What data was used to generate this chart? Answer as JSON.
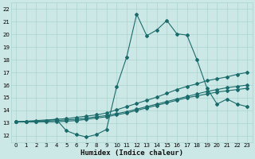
{
  "xlabel": "Humidex (Indice chaleur)",
  "xlim": [
    -0.5,
    23.5
  ],
  "ylim": [
    11.5,
    22.5
  ],
  "xticks": [
    0,
    1,
    2,
    3,
    4,
    5,
    6,
    7,
    8,
    9,
    10,
    11,
    12,
    13,
    14,
    15,
    16,
    17,
    18,
    19,
    20,
    21,
    22,
    23
  ],
  "yticks": [
    12,
    13,
    14,
    15,
    16,
    17,
    18,
    19,
    20,
    21,
    22
  ],
  "bg_color": "#cce8e6",
  "grid_color": "#aad4cf",
  "line_color": "#1a6b6b",
  "line_main_x": [
    0,
    4,
    5,
    6,
    7,
    8,
    9,
    10,
    11,
    12,
    13,
    14,
    15,
    16,
    17,
    18,
    19,
    20,
    21,
    22,
    23
  ],
  "line_main_y": [
    13.1,
    13.3,
    12.4,
    12.1,
    11.9,
    12.1,
    12.5,
    15.85,
    18.2,
    21.6,
    19.9,
    20.35,
    21.1,
    20.05,
    19.95,
    18.0,
    15.75,
    14.5,
    14.9,
    14.5,
    14.3
  ],
  "line_a_x": [
    0,
    1,
    2,
    3,
    4,
    5,
    6,
    7,
    8,
    9,
    10,
    11,
    12,
    13,
    14,
    15,
    16,
    17,
    18,
    19,
    20,
    21,
    22,
    23
  ],
  "line_a_y": [
    13.1,
    13.1,
    13.15,
    13.2,
    13.3,
    13.35,
    13.45,
    13.55,
    13.65,
    13.8,
    14.05,
    14.3,
    14.55,
    14.8,
    15.05,
    15.35,
    15.65,
    15.9,
    16.1,
    16.35,
    16.5,
    16.65,
    16.85,
    17.0
  ],
  "line_b_x": [
    0,
    1,
    2,
    3,
    4,
    5,
    6,
    7,
    8,
    9,
    10,
    11,
    12,
    13,
    14,
    15,
    16,
    17,
    18,
    19,
    20,
    21,
    22,
    23
  ],
  "line_b_y": [
    13.1,
    13.1,
    13.1,
    13.15,
    13.2,
    13.25,
    13.3,
    13.4,
    13.5,
    13.6,
    13.75,
    13.9,
    14.1,
    14.3,
    14.5,
    14.7,
    14.9,
    15.1,
    15.3,
    15.5,
    15.65,
    15.8,
    15.9,
    16.0
  ],
  "line_c_x": [
    0,
    1,
    2,
    3,
    4,
    5,
    6,
    7,
    8,
    9,
    10,
    11,
    12,
    13,
    14,
    15,
    16,
    17,
    18,
    19,
    20,
    21,
    22,
    23
  ],
  "line_c_y": [
    13.1,
    13.1,
    13.1,
    13.1,
    13.1,
    13.15,
    13.2,
    13.3,
    13.4,
    13.5,
    13.65,
    13.8,
    14.0,
    14.2,
    14.4,
    14.6,
    14.8,
    15.0,
    15.15,
    15.3,
    15.45,
    15.55,
    15.65,
    15.75
  ]
}
